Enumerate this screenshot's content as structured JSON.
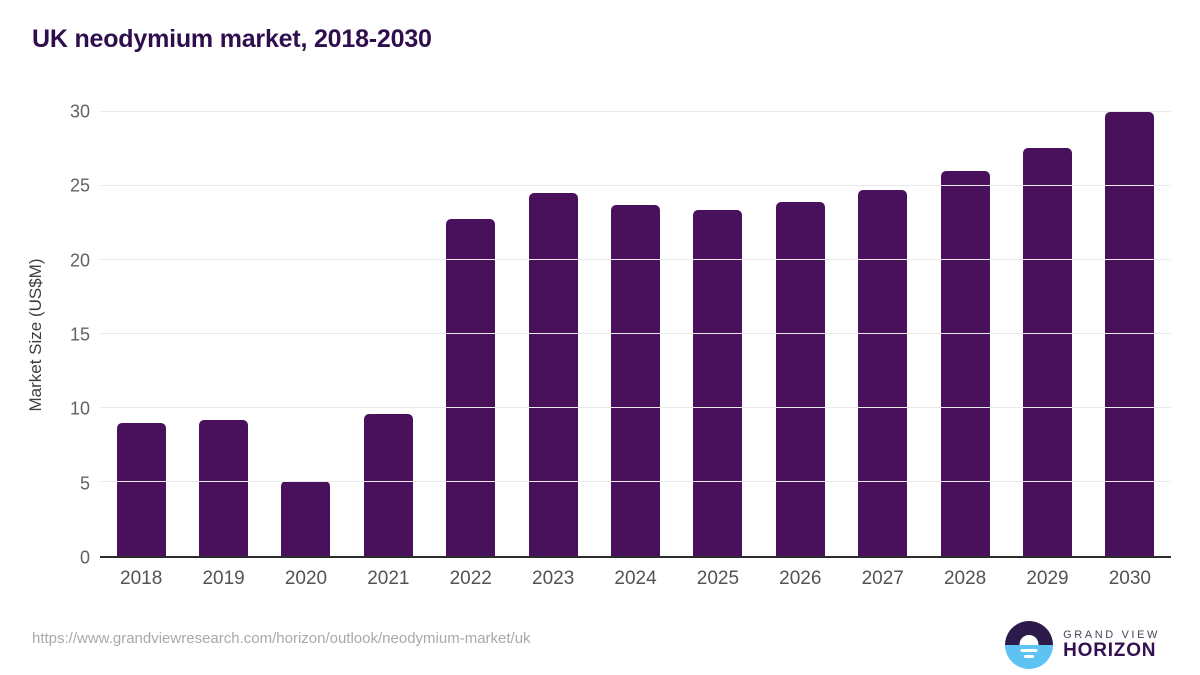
{
  "title": "UK neodymium market, 2018-2030",
  "colors": {
    "bar": "#49115c",
    "title_text": "#2f0e4d",
    "gridline": "#eaeaea",
    "axis_line": "#2b2b2b",
    "tick_text": "#5f6266",
    "url_text": "#a9a9a9",
    "logo_dark": "#2b1a4a",
    "logo_blue": "#5ec3f2"
  },
  "chart_data": {
    "type": "bar",
    "categories": [
      "2018",
      "2019",
      "2020",
      "2021",
      "2022",
      "2023",
      "2024",
      "2025",
      "2026",
      "2027",
      "2028",
      "2029",
      "2030"
    ],
    "values": [
      9.0,
      9.2,
      5.05,
      9.6,
      22.8,
      24.5,
      23.7,
      23.4,
      23.9,
      24.7,
      26.0,
      27.6,
      30.0
    ],
    "title": "UK neodymium market, 2018-2030",
    "xlabel": "",
    "ylabel": "Market Size (US$M)",
    "ylim": [
      0,
      30
    ],
    "yticks": [
      0,
      5,
      10,
      15,
      20,
      25,
      30
    ],
    "grid": true,
    "legend": false,
    "bar_color": "#49115c"
  },
  "footer": {
    "source_url": "https://www.grandviewresearch.com/horizon/outlook/neodymium-market/uk",
    "logo_line1": "GRAND VIEW",
    "logo_line2": "HORIZON"
  }
}
